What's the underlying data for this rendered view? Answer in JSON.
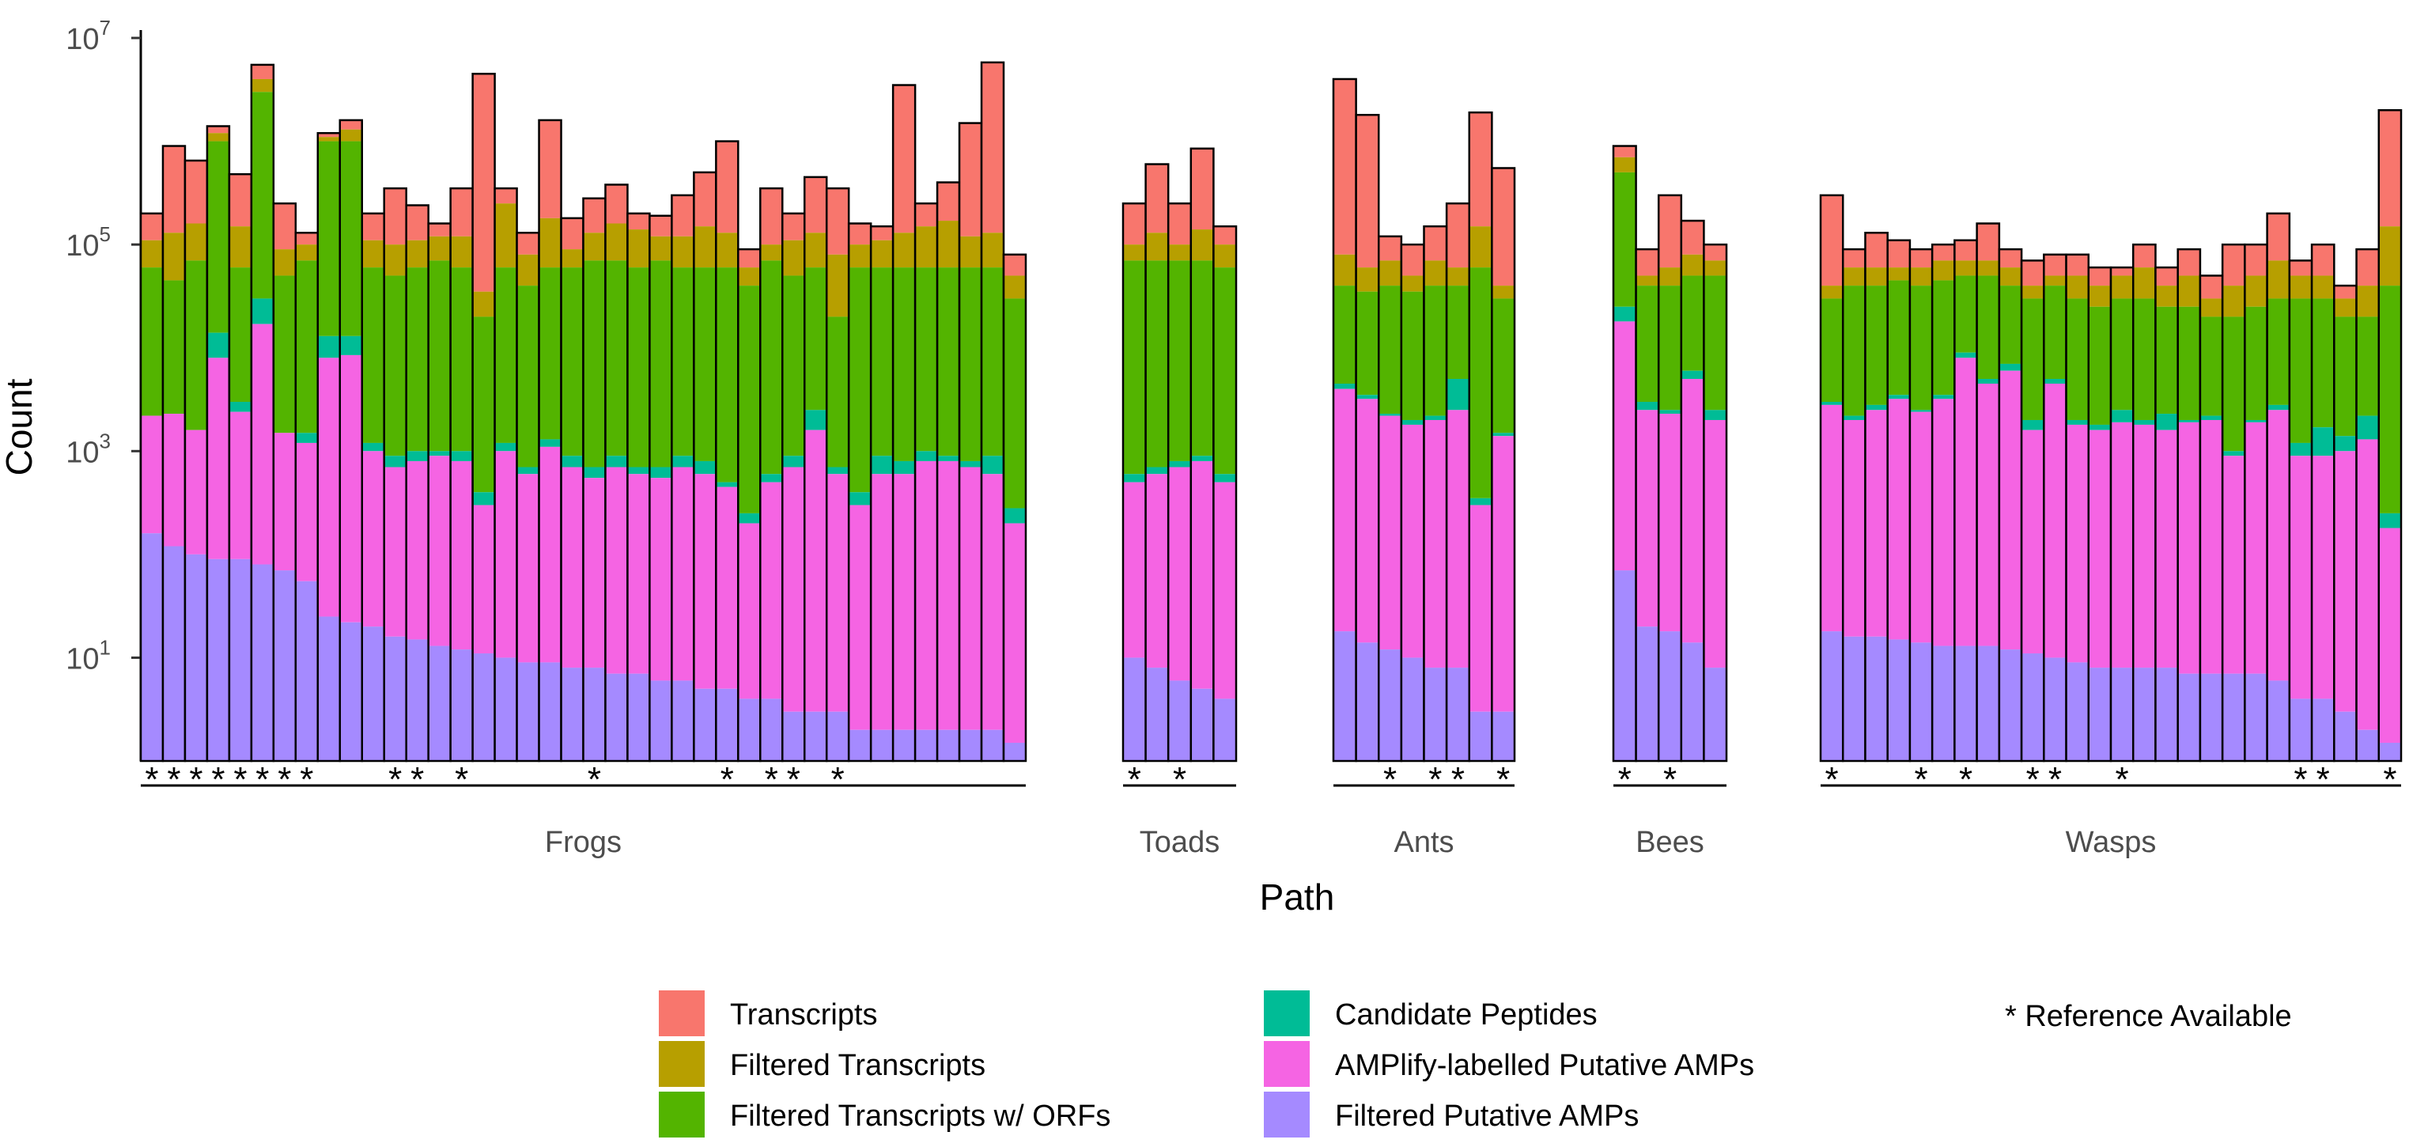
{
  "chart_data": {
    "type": "bar",
    "stacking": "nested",
    "y_scale": "log",
    "ylim": [
      1,
      10000000
    ],
    "y_ticks": [
      10,
      1000,
      100000,
      10000000
    ],
    "y_tick_labels": [
      {
        "base": "10",
        "exp": "1"
      },
      {
        "base": "10",
        "exp": "3"
      },
      {
        "base": "10",
        "exp": "5"
      },
      {
        "base": "10",
        "exp": "7"
      }
    ],
    "xlabel": "Path",
    "ylabel": "Count",
    "grid": false,
    "legend_position": "bottom",
    "legend_title": "",
    "stage_colors": [
      "#F8766D",
      "#B79F00",
      "#53B400",
      "#00BC96",
      "#F564E3",
      "#A58AFF"
    ],
    "series": [
      {
        "name": "Transcripts"
      },
      {
        "name": "Filtered Transcripts"
      },
      {
        "name": "Filtered Transcripts w/ ORFs"
      },
      {
        "name": "Candidate Peptides"
      },
      {
        "name": "AMPlify-labelled Putative AMPs"
      },
      {
        "name": "Filtered Putative AMPs"
      }
    ],
    "reference_note": "* Reference Available",
    "groups": [
      {
        "name": "Frogs",
        "bars": [
          {
            "ref": true,
            "values": [
              200000,
              110000,
              60000,
              2200,
              2200,
              160
            ]
          },
          {
            "ref": true,
            "values": [
              900000,
              130000,
              45000,
              2300,
              2300,
              120
            ]
          },
          {
            "ref": true,
            "values": [
              650000,
              160000,
              70000,
              1600,
              1600,
              100
            ]
          },
          {
            "ref": true,
            "values": [
              1400000,
              1200000,
              1000000,
              14000,
              8000,
              90
            ]
          },
          {
            "ref": true,
            "values": [
              480000,
              150000,
              60000,
              3000,
              2400,
              90
            ]
          },
          {
            "ref": true,
            "values": [
              5500000,
              4000000,
              3000000,
              30000,
              17000,
              80
            ]
          },
          {
            "ref": true,
            "values": [
              250000,
              90000,
              50000,
              1500,
              1500,
              70
            ]
          },
          {
            "ref": true,
            "values": [
              130000,
              100000,
              70000,
              1500,
              1200,
              55
            ]
          },
          {
            "ref": false,
            "values": [
              1200000,
              1100000,
              1000000,
              13000,
              8000,
              25
            ]
          },
          {
            "ref": false,
            "values": [
              1600000,
              1300000,
              1000000,
              13000,
              8500,
              22
            ]
          },
          {
            "ref": false,
            "values": [
              200000,
              110000,
              60000,
              1200,
              1000,
              20
            ]
          },
          {
            "ref": true,
            "values": [
              350000,
              100000,
              50000,
              900,
              700,
              16
            ]
          },
          {
            "ref": true,
            "values": [
              240000,
              110000,
              60000,
              1000,
              800,
              15
            ]
          },
          {
            "ref": false,
            "values": [
              160000,
              120000,
              70000,
              1000,
              900,
              13
            ]
          },
          {
            "ref": true,
            "values": [
              350000,
              120000,
              60000,
              1000,
              800,
              12
            ]
          },
          {
            "ref": false,
            "values": [
              4500000,
              35000,
              20000,
              400,
              300,
              11
            ]
          },
          {
            "ref": false,
            "values": [
              350000,
              250000,
              60000,
              1200,
              1000,
              10
            ]
          },
          {
            "ref": false,
            "values": [
              130000,
              80000,
              40000,
              700,
              600,
              9
            ]
          },
          {
            "ref": false,
            "values": [
              1600000,
              180000,
              60000,
              1300,
              1100,
              9
            ]
          },
          {
            "ref": false,
            "values": [
              180000,
              90000,
              60000,
              900,
              700,
              8
            ]
          },
          {
            "ref": true,
            "values": [
              280000,
              130000,
              70000,
              700,
              550,
              8
            ]
          },
          {
            "ref": false,
            "values": [
              380000,
              160000,
              70000,
              900,
              700,
              7
            ]
          },
          {
            "ref": false,
            "values": [
              200000,
              140000,
              60000,
              700,
              600,
              7
            ]
          },
          {
            "ref": false,
            "values": [
              190000,
              120000,
              70000,
              700,
              550,
              6
            ]
          },
          {
            "ref": false,
            "values": [
              300000,
              120000,
              60000,
              900,
              700,
              6
            ]
          },
          {
            "ref": false,
            "values": [
              500000,
              150000,
              60000,
              800,
              600,
              5
            ]
          },
          {
            "ref": true,
            "values": [
              1000000,
              130000,
              60000,
              500,
              450,
              5
            ]
          },
          {
            "ref": false,
            "values": [
              90000,
              60000,
              40000,
              250,
              200,
              4
            ]
          },
          {
            "ref": true,
            "values": [
              350000,
              100000,
              70000,
              600,
              500,
              4
            ]
          },
          {
            "ref": true,
            "values": [
              200000,
              110000,
              50000,
              900,
              700,
              3
            ]
          },
          {
            "ref": false,
            "values": [
              450000,
              130000,
              60000,
              2500,
              1600,
              3
            ]
          },
          {
            "ref": true,
            "values": [
              350000,
              80000,
              20000,
              700,
              600,
              3
            ]
          },
          {
            "ref": false,
            "values": [
              160000,
              100000,
              60000,
              400,
              300,
              2
            ]
          },
          {
            "ref": false,
            "values": [
              150000,
              110000,
              60000,
              900,
              600,
              2
            ]
          },
          {
            "ref": false,
            "values": [
              3500000,
              130000,
              60000,
              800,
              600,
              2
            ]
          },
          {
            "ref": false,
            "values": [
              250000,
              150000,
              60000,
              1000,
              800,
              2
            ]
          },
          {
            "ref": false,
            "values": [
              400000,
              170000,
              60000,
              900,
              800,
              2
            ]
          },
          {
            "ref": false,
            "values": [
              1500000,
              120000,
              60000,
              800,
              700,
              2
            ]
          },
          {
            "ref": false,
            "values": [
              5800000,
              130000,
              60000,
              900,
              600,
              2
            ]
          },
          {
            "ref": false,
            "values": [
              80000,
              50000,
              30000,
              280,
              200,
              1.5
            ]
          }
        ]
      },
      {
        "name": "Toads",
        "bars": [
          {
            "ref": true,
            "values": [
              250000,
              100000,
              70000,
              600,
              500,
              10
            ]
          },
          {
            "ref": false,
            "values": [
              600000,
              130000,
              70000,
              700,
              600,
              8
            ]
          },
          {
            "ref": true,
            "values": [
              250000,
              100000,
              70000,
              800,
              700,
              6
            ]
          },
          {
            "ref": false,
            "values": [
              850000,
              140000,
              70000,
              900,
              800,
              5
            ]
          },
          {
            "ref": false,
            "values": [
              150000,
              100000,
              60000,
              600,
              500,
              4
            ]
          }
        ]
      },
      {
        "name": "Ants",
        "bars": [
          {
            "ref": false,
            "values": [
              4000000,
              80000,
              40000,
              4500,
              4000,
              18
            ]
          },
          {
            "ref": false,
            "values": [
              1800000,
              60000,
              35000,
              3500,
              3200,
              14
            ]
          },
          {
            "ref": true,
            "values": [
              120000,
              70000,
              40000,
              2300,
              2200,
              12
            ]
          },
          {
            "ref": false,
            "values": [
              100000,
              50000,
              35000,
              2000,
              1800,
              10
            ]
          },
          {
            "ref": true,
            "values": [
              150000,
              70000,
              40000,
              2200,
              2000,
              8
            ]
          },
          {
            "ref": true,
            "values": [
              250000,
              60000,
              40000,
              5000,
              2500,
              8
            ]
          },
          {
            "ref": false,
            "values": [
              1900000,
              150000,
              60000,
              350,
              300,
              3
            ]
          },
          {
            "ref": true,
            "values": [
              550000,
              40000,
              30000,
              1500,
              1400,
              3
            ]
          }
        ]
      },
      {
        "name": "Bees",
        "bars": [
          {
            "ref": true,
            "values": [
              900000,
              700000,
              500000,
              25000,
              18000,
              70
            ]
          },
          {
            "ref": false,
            "values": [
              90000,
              50000,
              40000,
              3000,
              2500,
              20
            ]
          },
          {
            "ref": true,
            "values": [
              300000,
              60000,
              40000,
              2500,
              2300,
              18
            ]
          },
          {
            "ref": false,
            "values": [
              170000,
              80000,
              50000,
              6000,
              5000,
              14
            ]
          },
          {
            "ref": false,
            "values": [
              100000,
              70000,
              50000,
              2500,
              2000,
              8
            ]
          }
        ]
      },
      {
        "name": "Wasps",
        "bars": [
          {
            "ref": true,
            "values": [
              300000,
              40000,
              30000,
              3000,
              2800,
              18
            ]
          },
          {
            "ref": false,
            "values": [
              90000,
              60000,
              40000,
              2200,
              2000,
              16
            ]
          },
          {
            "ref": false,
            "values": [
              130000,
              60000,
              40000,
              2800,
              2500,
              16
            ]
          },
          {
            "ref": false,
            "values": [
              110000,
              60000,
              45000,
              3500,
              3200,
              15
            ]
          },
          {
            "ref": true,
            "values": [
              90000,
              60000,
              40000,
              2500,
              2400,
              14
            ]
          },
          {
            "ref": false,
            "values": [
              100000,
              70000,
              45000,
              3500,
              3200,
              13
            ]
          },
          {
            "ref": true,
            "values": [
              110000,
              70000,
              50000,
              9000,
              8000,
              13
            ]
          },
          {
            "ref": false,
            "values": [
              160000,
              70000,
              50000,
              5000,
              4500,
              13
            ]
          },
          {
            "ref": false,
            "values": [
              90000,
              60000,
              40000,
              7000,
              6000,
              12
            ]
          },
          {
            "ref": true,
            "values": [
              70000,
              40000,
              30000,
              2000,
              1600,
              11
            ]
          },
          {
            "ref": true,
            "values": [
              80000,
              50000,
              40000,
              5000,
              4500,
              10
            ]
          },
          {
            "ref": false,
            "values": [
              80000,
              50000,
              30000,
              2000,
              1800,
              9
            ]
          },
          {
            "ref": false,
            "values": [
              60000,
              40000,
              25000,
              1800,
              1600,
              8
            ]
          },
          {
            "ref": true,
            "values": [
              60000,
              50000,
              30000,
              2500,
              1900,
              8
            ]
          },
          {
            "ref": false,
            "values": [
              100000,
              60000,
              30000,
              2000,
              1800,
              8
            ]
          },
          {
            "ref": false,
            "values": [
              60000,
              40000,
              25000,
              2300,
              1600,
              8
            ]
          },
          {
            "ref": false,
            "values": [
              90000,
              50000,
              25000,
              2000,
              1900,
              7
            ]
          },
          {
            "ref": false,
            "values": [
              50000,
              30000,
              20000,
              2200,
              2000,
              7
            ]
          },
          {
            "ref": false,
            "values": [
              100000,
              40000,
              20000,
              1000,
              900,
              7
            ]
          },
          {
            "ref": false,
            "values": [
              100000,
              50000,
              25000,
              2000,
              1900,
              7
            ]
          },
          {
            "ref": false,
            "values": [
              200000,
              70000,
              30000,
              2800,
              2500,
              6
            ]
          },
          {
            "ref": true,
            "values": [
              70000,
              50000,
              30000,
              1200,
              900,
              4
            ]
          },
          {
            "ref": true,
            "values": [
              100000,
              50000,
              30000,
              1700,
              900,
              4
            ]
          },
          {
            "ref": false,
            "values": [
              40000,
              30000,
              20000,
              1400,
              1000,
              3
            ]
          },
          {
            "ref": false,
            "values": [
              90000,
              40000,
              20000,
              2200,
              1300,
              2
            ]
          },
          {
            "ref": true,
            "values": [
              2000000,
              150000,
              40000,
              250,
              180,
              1.5
            ]
          }
        ]
      }
    ]
  }
}
